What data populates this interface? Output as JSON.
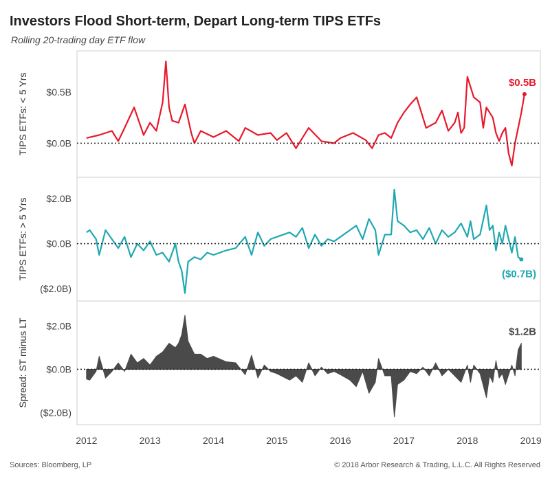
{
  "header": {
    "title": "Investors Flood Short-term, Depart Long-term TIPS ETFs",
    "subtitle": "Rolling 20-trading day ETF flow"
  },
  "footer": {
    "source": "Sources: Bloomberg, LP",
    "copyright": "© 2018 Arbor Research & Trading, L.L.C. All Rights Reserved"
  },
  "colors": {
    "short_term": "#e8182b",
    "long_term": "#1fa8b0",
    "spread": "#4a4a4a",
    "zero_line": "#222222"
  },
  "chart_data": [
    {
      "type": "line",
      "ylabel": "TIPS ETFs: < 5 Yrs",
      "ylim": [
        -0.28,
        0.85
      ],
      "yticks": [
        {
          "v": 0.5,
          "label": "$0.5B"
        },
        {
          "v": 0.0,
          "label": "$0.0B"
        }
      ],
      "last_label": "$0.5B",
      "series": [
        {
          "color": "#e8182b",
          "x": [
            2012.0,
            2012.2,
            2012.4,
            2012.5,
            2012.6,
            2012.75,
            2012.9,
            2013.0,
            2013.1,
            2013.2,
            2013.25,
            2013.3,
            2013.35,
            2013.45,
            2013.55,
            2013.65,
            2013.7,
            2013.8,
            2014.0,
            2014.2,
            2014.4,
            2014.5,
            2014.7,
            2014.9,
            2015.0,
            2015.15,
            2015.3,
            2015.5,
            2015.7,
            2015.9,
            2016.0,
            2016.2,
            2016.4,
            2016.5,
            2016.6,
            2016.7,
            2016.8,
            2016.9,
            2017.0,
            2017.1,
            2017.2,
            2017.35,
            2017.5,
            2017.6,
            2017.7,
            2017.8,
            2017.85,
            2017.9,
            2017.95,
            2018.0,
            2018.1,
            2018.2,
            2018.25,
            2018.3,
            2018.4,
            2018.45,
            2018.5,
            2018.55,
            2018.6,
            2018.65,
            2018.7,
            2018.75,
            2018.8,
            2018.85,
            2018.9
          ],
          "values": [
            0.05,
            0.08,
            0.12,
            0.02,
            0.15,
            0.35,
            0.08,
            0.2,
            0.12,
            0.4,
            0.8,
            0.35,
            0.22,
            0.2,
            0.38,
            0.1,
            0.0,
            0.12,
            0.06,
            0.12,
            0.02,
            0.15,
            0.08,
            0.1,
            0.03,
            0.1,
            -0.05,
            0.15,
            0.02,
            0.0,
            0.05,
            0.1,
            0.03,
            -0.05,
            0.08,
            0.1,
            0.05,
            0.2,
            0.3,
            0.38,
            0.45,
            0.15,
            0.2,
            0.32,
            0.12,
            0.2,
            0.3,
            0.1,
            0.15,
            0.65,
            0.45,
            0.4,
            0.15,
            0.35,
            0.25,
            0.1,
            0.02,
            0.1,
            0.15,
            -0.1,
            -0.22,
            0.0,
            0.15,
            0.3,
            0.48
          ]
        }
      ]
    },
    {
      "type": "line",
      "ylabel": "TIPS ETFs: > 5 Yrs",
      "ylim": [
        -2.3,
        2.7
      ],
      "yticks": [
        {
          "v": 2.0,
          "label": "$2.0B"
        },
        {
          "v": 0.0,
          "label": "$0.0B"
        },
        {
          "v": -2.0,
          "label": "($2.0B)"
        }
      ],
      "last_label": "($0.7B)",
      "series": [
        {
          "color": "#1fa8b0",
          "x": [
            2012.0,
            2012.05,
            2012.15,
            2012.2,
            2012.3,
            2012.4,
            2012.5,
            2012.6,
            2012.7,
            2012.8,
            2012.9,
            2013.0,
            2013.1,
            2013.2,
            2013.3,
            2013.4,
            2013.45,
            2013.5,
            2013.55,
            2013.6,
            2013.7,
            2013.8,
            2013.9,
            2014.0,
            2014.2,
            2014.35,
            2014.5,
            2014.6,
            2014.7,
            2014.8,
            2014.9,
            2015.0,
            2015.2,
            2015.3,
            2015.4,
            2015.5,
            2015.6,
            2015.7,
            2015.8,
            2015.9,
            2016.0,
            2016.15,
            2016.25,
            2016.35,
            2016.45,
            2016.55,
            2016.6,
            2016.7,
            2016.8,
            2016.85,
            2016.9,
            2017.0,
            2017.1,
            2017.2,
            2017.3,
            2017.4,
            2017.5,
            2017.6,
            2017.7,
            2017.8,
            2017.9,
            2018.0,
            2018.05,
            2018.1,
            2018.2,
            2018.3,
            2018.35,
            2018.4,
            2018.45,
            2018.5,
            2018.55,
            2018.6,
            2018.7,
            2018.75,
            2018.8,
            2018.85
          ],
          "values": [
            0.5,
            0.6,
            0.2,
            -0.5,
            0.6,
            0.2,
            -0.2,
            0.3,
            -0.6,
            0.0,
            -0.3,
            0.1,
            -0.5,
            -0.4,
            -0.8,
            0.0,
            -0.8,
            -1.2,
            -2.2,
            -0.8,
            -0.6,
            -0.7,
            -0.4,
            -0.5,
            -0.3,
            -0.2,
            0.3,
            -0.5,
            0.5,
            -0.1,
            0.2,
            0.3,
            0.5,
            0.3,
            0.7,
            -0.2,
            0.4,
            -0.1,
            0.2,
            0.1,
            0.3,
            0.6,
            0.8,
            0.2,
            1.1,
            0.6,
            -0.5,
            0.4,
            0.4,
            2.4,
            1.0,
            0.8,
            0.5,
            0.6,
            0.2,
            0.7,
            0.0,
            0.6,
            0.3,
            0.5,
            0.9,
            0.3,
            1.0,
            0.2,
            0.4,
            1.7,
            0.6,
            0.8,
            -0.3,
            0.5,
            0.0,
            0.8,
            -0.4,
            0.3,
            -0.6,
            -0.7
          ]
        }
      ]
    },
    {
      "type": "area",
      "ylabel": "Spread: ST minus LT",
      "ylim": [
        -2.3,
        2.9
      ],
      "yticks": [
        {
          "v": 2.0,
          "label": "$2.0B"
        },
        {
          "v": 0.0,
          "label": "$0.0B"
        },
        {
          "v": -2.0,
          "label": "($2.0B)"
        }
      ],
      "last_label": "$1.2B",
      "series": [
        {
          "color": "#4a4a4a",
          "x": [
            2012.0,
            2012.05,
            2012.15,
            2012.2,
            2012.3,
            2012.4,
            2012.5,
            2012.6,
            2012.7,
            2012.8,
            2012.9,
            2013.0,
            2013.1,
            2013.2,
            2013.3,
            2013.4,
            2013.45,
            2013.5,
            2013.55,
            2013.6,
            2013.7,
            2013.8,
            2013.9,
            2014.0,
            2014.2,
            2014.35,
            2014.5,
            2014.6,
            2014.7,
            2014.8,
            2014.9,
            2015.0,
            2015.2,
            2015.3,
            2015.4,
            2015.5,
            2015.6,
            2015.7,
            2015.8,
            2015.9,
            2016.0,
            2016.15,
            2016.25,
            2016.35,
            2016.45,
            2016.55,
            2016.6,
            2016.7,
            2016.8,
            2016.85,
            2016.9,
            2017.0,
            2017.1,
            2017.2,
            2017.3,
            2017.4,
            2017.5,
            2017.6,
            2017.7,
            2017.8,
            2017.9,
            2018.0,
            2018.05,
            2018.1,
            2018.2,
            2018.3,
            2018.35,
            2018.4,
            2018.45,
            2018.5,
            2018.55,
            2018.6,
            2018.7,
            2018.75,
            2018.8,
            2018.85
          ],
          "values": [
            -0.45,
            -0.5,
            -0.1,
            0.6,
            -0.4,
            -0.1,
            0.3,
            -0.1,
            0.7,
            0.3,
            0.5,
            0.2,
            0.6,
            0.8,
            1.2,
            1.0,
            1.2,
            1.6,
            2.5,
            1.3,
            0.7,
            0.7,
            0.5,
            0.6,
            0.35,
            0.3,
            -0.25,
            0.65,
            -0.4,
            0.2,
            -0.1,
            -0.2,
            -0.5,
            -0.3,
            -0.6,
            0.3,
            -0.3,
            0.1,
            -0.2,
            -0.1,
            -0.25,
            -0.5,
            -0.8,
            -0.1,
            -1.1,
            -0.6,
            0.5,
            -0.3,
            -0.3,
            -2.2,
            -0.7,
            -0.5,
            -0.1,
            -0.2,
            0.1,
            -0.3,
            0.3,
            -0.3,
            0.0,
            -0.3,
            -0.6,
            0.2,
            -0.6,
            0.2,
            -0.2,
            -1.3,
            -0.3,
            -0.6,
            0.4,
            -0.4,
            -0.2,
            -0.7,
            0.2,
            -0.3,
            0.9,
            1.2
          ]
        }
      ]
    }
  ],
  "x_axis": {
    "xlim": [
      2011.85,
      2019.15
    ],
    "ticks": [
      {
        "v": 2012,
        "label": "2012"
      },
      {
        "v": 2013,
        "label": "2013"
      },
      {
        "v": 2014,
        "label": "2014"
      },
      {
        "v": 2015,
        "label": "2015"
      },
      {
        "v": 2016,
        "label": "2016"
      },
      {
        "v": 2017,
        "label": "2017"
      },
      {
        "v": 2018,
        "label": "2018"
      },
      {
        "v": 2019,
        "label": "2019"
      }
    ]
  }
}
